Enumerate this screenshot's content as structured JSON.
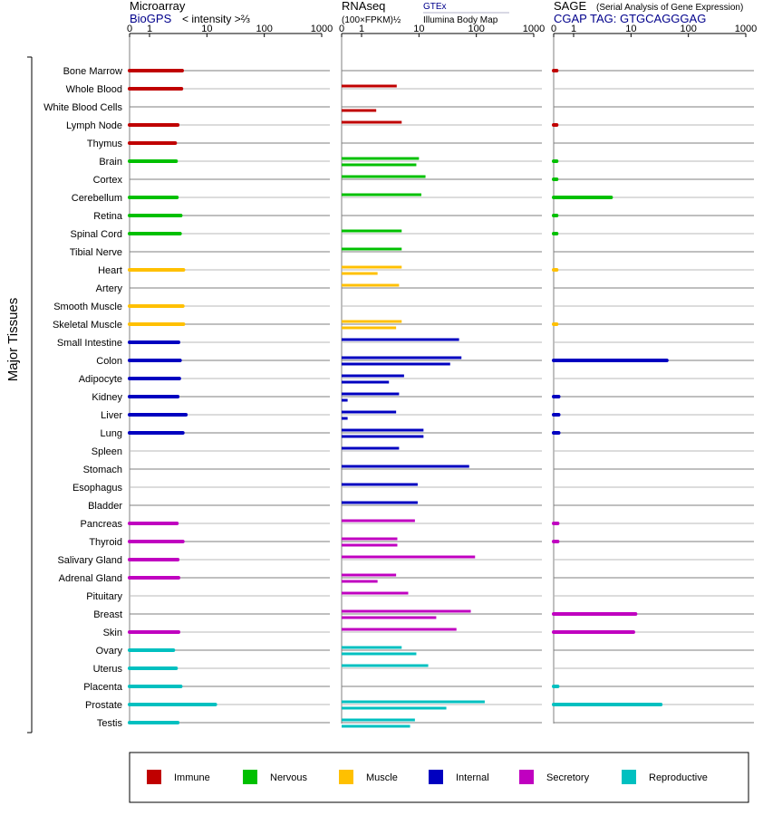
{
  "chart_data": {
    "type": "bar",
    "y_axis_label": "Major Tissues",
    "tissues": [
      "Bone Marrow",
      "Whole Blood",
      "White Blood Cells",
      "Lymph Node",
      "Thymus",
      "Brain",
      "Cortex",
      "Cerebellum",
      "Retina",
      "Spinal Cord",
      "Tibial Nerve",
      "Heart",
      "Artery",
      "Smooth Muscle",
      "Skeletal Muscle",
      "Small Intestine",
      "Colon",
      "Adipocyte",
      "Kidney",
      "Liver",
      "Lung",
      "Spleen",
      "Stomach",
      "Esophagus",
      "Bladder",
      "Pancreas",
      "Thyroid",
      "Salivary Gland",
      "Adrenal Gland",
      "Pituitary",
      "Breast",
      "Skin",
      "Ovary",
      "Uterus",
      "Placenta",
      "Prostate",
      "Testis"
    ],
    "tissue_groups": [
      "Immune",
      "Immune",
      "Immune",
      "Immune",
      "Immune",
      "Nervous",
      "Nervous",
      "Nervous",
      "Nervous",
      "Nervous",
      "Nervous",
      "Muscle",
      "Muscle",
      "Muscle",
      "Muscle",
      "Internal",
      "Internal",
      "Internal",
      "Internal",
      "Internal",
      "Internal",
      "Internal",
      "Internal",
      "Internal",
      "Internal",
      "Secretory",
      "Secretory",
      "Secretory",
      "Secretory",
      "Secretory",
      "Secretory",
      "Secretory",
      "Reproductive",
      "Reproductive",
      "Reproductive",
      "Reproductive",
      "Reproductive"
    ],
    "legend": [
      {
        "name": "Immune",
        "color": "#c00000"
      },
      {
        "name": "Nervous",
        "color": "#00c000"
      },
      {
        "name": "Muscle",
        "color": "#ffc000"
      },
      {
        "name": "Internal",
        "color": "#0000c0"
      },
      {
        "name": "Secretory",
        "color": "#c000c0"
      },
      {
        "name": "Reproductive",
        "color": "#00c0c0"
      }
    ],
    "ticks": [
      "0",
      "1",
      "10",
      "100",
      "1000"
    ],
    "tick_values": [
      0,
      1,
      10,
      100,
      1000
    ],
    "panels": [
      {
        "key": "microarray",
        "title": "Microarray",
        "subtitle_link": "BioGPS",
        "subtitle_text": "< intensity >⅔",
        "series": [
          {
            "name": "BioGPS",
            "values": [
              3.7,
              3.6,
              null,
              3.1,
              2.8,
              2.9,
              null,
              3.0,
              3.5,
              3.4,
              null,
              3.9,
              null,
              3.8,
              3.9,
              3.2,
              3.4,
              3.3,
              3.1,
              4.3,
              3.8,
              null,
              null,
              null,
              null,
              3.0,
              3.8,
              3.1,
              3.2,
              null,
              null,
              3.2,
              2.6,
              2.9,
              3.5,
              14.0,
              3.1
            ]
          }
        ]
      },
      {
        "key": "rnaseq",
        "title": "RNAseq",
        "subtitle_text": "(100×FPKM)½",
        "series_labels": [
          "GTEx",
          "Illumina Body Map"
        ],
        "series": [
          {
            "name": "GTEx",
            "values": [
              null,
              4.1,
              null,
              5.0,
              null,
              10.0,
              13.0,
              11.0,
              null,
              5.0,
              5.0,
              5.0,
              4.5,
              null,
              5.0,
              50,
              55,
              5.5,
              4.5,
              4.0,
              12.0,
              4.5,
              75,
              9.5,
              9.5,
              8.5,
              4.2,
              95,
              4.0,
              6.5,
              80,
              45,
              5.0,
              14.5,
              null,
              140,
              8.5
            ]
          },
          {
            "name": "Illumina Body Map",
            "values": [
              null,
              null,
              1.8,
              null,
              null,
              9.0,
              null,
              null,
              null,
              null,
              null,
              1.9,
              null,
              null,
              4.0,
              null,
              35,
              3.0,
              0.3,
              0.3,
              12.0,
              null,
              null,
              null,
              null,
              null,
              4.2,
              null,
              1.9,
              null,
              20,
              null,
              9.0,
              null,
              null,
              30,
              7.0
            ]
          }
        ]
      },
      {
        "key": "sage",
        "title": "SAGE",
        "subtitle_small": "(Serial Analysis of Gene Expression)",
        "subtitle_text": "CGAP  TAG: GTGCAGGGAG",
        "series": [
          {
            "name": "SAGE",
            "values": [
              0.15,
              null,
              null,
              0.15,
              null,
              0.15,
              0.15,
              4.5,
              0.15,
              0.15,
              null,
              0.15,
              null,
              null,
              0.15,
              null,
              42,
              null,
              0.25,
              0.25,
              0.25,
              null,
              null,
              null,
              null,
              0.2,
              0.2,
              null,
              null,
              null,
              12,
              11,
              null,
              null,
              0.2,
              33,
              null
            ]
          }
        ]
      }
    ]
  }
}
